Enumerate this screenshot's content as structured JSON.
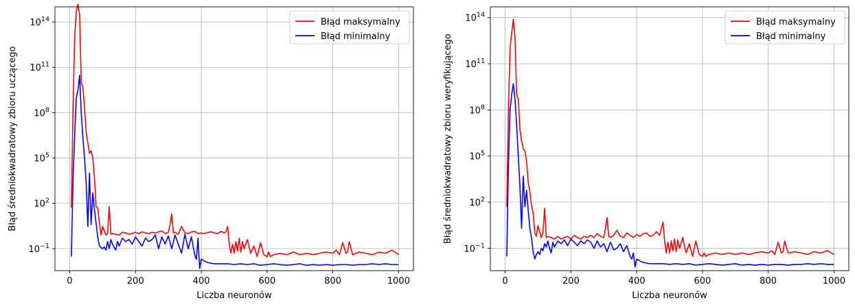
{
  "chart_data": [
    {
      "type": "line",
      "title": "",
      "xlabel": "Liczba neuronów",
      "ylabel": "Błąd średniokwadratowy zbioru uczącego",
      "yscale": "log",
      "xlim": [
        -45,
        1045
      ],
      "ylim": [
        0.0035,
        1000000000000000.0
      ],
      "xticks": [
        0,
        200,
        400,
        600,
        800,
        1000
      ],
      "yticks": [
        {
          "value": 0.1,
          "base": "10",
          "exp": "−1"
        },
        {
          "value": 100,
          "base": "10",
          "exp": "2"
        },
        {
          "value": 100000,
          "base": "10",
          "exp": "5"
        },
        {
          "value": 100000000,
          "base": "10",
          "exp": "8"
        },
        {
          "value": 100000000000,
          "base": "10",
          "exp": "11"
        },
        {
          "value": 100000000000000,
          "base": "10",
          "exp": "14"
        }
      ],
      "grid": true,
      "legend_position": "top-right",
      "series": [
        {
          "name": "Błąd maksymalny",
          "color": "#ff0000",
          "x": [
            5,
            10,
            15,
            20,
            25,
            30,
            35,
            40,
            45,
            50,
            55,
            60,
            65,
            70,
            75,
            80,
            85,
            90,
            95,
            100,
            110,
            115,
            120,
            125,
            130,
            140,
            150,
            160,
            170,
            180,
            190,
            200,
            210,
            220,
            230,
            240,
            250,
            260,
            270,
            280,
            290,
            300,
            305,
            310,
            315,
            320,
            330,
            340,
            350,
            360,
            370,
            380,
            390,
            400,
            410,
            420,
            430,
            440,
            450,
            460,
            470,
            475,
            480,
            485,
            490,
            495,
            500,
            505,
            510,
            515,
            520,
            525,
            530,
            540,
            550,
            560,
            570,
            580,
            590,
            600,
            605,
            610,
            620,
            640,
            660,
            680,
            700,
            720,
            740,
            760,
            780,
            800,
            810,
            820,
            830,
            840,
            845,
            850,
            860,
            880,
            900,
            920,
            940,
            960,
            980,
            1000
          ],
          "y": [
            50,
            200000000.0,
            10000000000000.0,
            500000000000000.0,
            1500000000000000.0,
            300000000000000.0,
            10000000000.0,
            5000000000.0,
            200000000.0,
            5000000.0,
            1000000.0,
            200000.0,
            300000.0,
            100000.0,
            5000.0,
            60,
            50,
            5,
            0.8,
            3,
            0.8,
            1,
            60,
            0.9,
            1,
            0.9,
            0.8,
            1.2,
            1.1,
            0.9,
            1,
            1.2,
            1,
            1.3,
            1.1,
            1,
            1.2,
            1.1,
            1.3,
            1.5,
            1,
            1.2,
            4,
            20,
            1.1,
            1.2,
            0.9,
            3,
            1.1,
            1,
            1.3,
            1.4,
            1,
            1.1,
            1,
            1.2,
            1.3,
            1.1,
            1,
            1.4,
            1.1,
            1.3,
            3,
            0.2,
            0.05,
            0.2,
            0.05,
            0.3,
            0.07,
            0.5,
            0.06,
            0.3,
            0.1,
            0.4,
            0.05,
            0.15,
            0.03,
            0.25,
            0.04,
            0.03,
            0.06,
            0.03,
            0.04,
            0.05,
            0.04,
            0.06,
            0.04,
            0.05,
            0.04,
            0.05,
            0.06,
            0.05,
            0.08,
            0.04,
            0.25,
            0.05,
            0.06,
            0.3,
            0.04,
            0.06,
            0.05,
            0.04,
            0.06,
            0.05,
            0.08,
            0.04
          ]
        },
        {
          "name": "Błąd minimalny",
          "color": "#0000ff",
          "x": [
            5,
            10,
            15,
            20,
            25,
            30,
            35,
            40,
            45,
            50,
            55,
            60,
            65,
            70,
            75,
            80,
            85,
            90,
            95,
            100,
            105,
            110,
            115,
            120,
            125,
            130,
            135,
            140,
            145,
            150,
            160,
            170,
            180,
            190,
            200,
            210,
            220,
            230,
            240,
            250,
            260,
            270,
            280,
            290,
            300,
            310,
            320,
            330,
            340,
            350,
            360,
            370,
            380,
            385,
            390,
            395,
            400,
            410,
            420,
            440,
            460,
            480,
            500,
            520,
            540,
            560,
            580,
            600,
            620,
            640,
            660,
            680,
            700,
            720,
            740,
            760,
            780,
            800,
            820,
            840,
            860,
            880,
            900,
            920,
            940,
            960,
            980,
            1000
          ],
          "y": [
            0.03,
            3000.0,
            3000000.0,
            1000000000.0,
            3000000000.0,
            30000000000.0,
            100000000.0,
            2000000.0,
            100000.0,
            2000.0,
            3,
            10000.0,
            4,
            500,
            40,
            5,
            0.6,
            0.15,
            0.12,
            0.1,
            0.13,
            0.08,
            0.3,
            0.1,
            0.4,
            0.2,
            0.12,
            0.08,
            0.3,
            0.15,
            0.5,
            0.3,
            0.4,
            0.2,
            0.6,
            0.3,
            0.15,
            0.5,
            0.3,
            0.4,
            0.8,
            0.1,
            0.6,
            0.2,
            0.7,
            0.1,
            0.8,
            0.2,
            0.05,
            0.9,
            0.1,
            0.6,
            0.04,
            0.02,
            0.5,
            0.005,
            0.02,
            0.015,
            0.012,
            0.01,
            0.01,
            0.01,
            0.009,
            0.01,
            0.009,
            0.01,
            0.008,
            0.009,
            0.01,
            0.009,
            0.008,
            0.009,
            0.01,
            0.008,
            0.009,
            0.008,
            0.009,
            0.008,
            0.009,
            0.009,
            0.008,
            0.009,
            0.009,
            0.01,
            0.009,
            0.01,
            0.009,
            0.009
          ]
        }
      ]
    },
    {
      "type": "line",
      "title": "",
      "xlabel": "Liczba neuronów",
      "ylabel": "Błąd średniokwadratowy zbioru weryfikującego",
      "yscale": "log",
      "xlim": [
        -45,
        1045
      ],
      "ylim": [
        0.0035,
        500000000000000.0
      ],
      "xticks": [
        0,
        200,
        400,
        600,
        800,
        1000
      ],
      "yticks": [
        {
          "value": 0.1,
          "base": "10",
          "exp": "−1"
        },
        {
          "value": 100,
          "base": "10",
          "exp": "2"
        },
        {
          "value": 100000,
          "base": "10",
          "exp": "5"
        },
        {
          "value": 100000000,
          "base": "10",
          "exp": "8"
        },
        {
          "value": 100000000000,
          "base": "10",
          "exp": "11"
        },
        {
          "value": 100000000000000,
          "base": "10",
          "exp": "14"
        }
      ],
      "grid": true,
      "legend_position": "top-right",
      "series": [
        {
          "name": "Błąd maksymalny",
          "color": "#ff0000",
          "x": [
            5,
            10,
            15,
            20,
            25,
            30,
            35,
            40,
            45,
            50,
            55,
            60,
            65,
            70,
            75,
            80,
            85,
            90,
            95,
            100,
            110,
            115,
            120,
            125,
            130,
            140,
            150,
            160,
            170,
            180,
            190,
            200,
            210,
            220,
            230,
            240,
            250,
            260,
            270,
            280,
            290,
            300,
            305,
            310,
            315,
            320,
            330,
            340,
            350,
            360,
            370,
            380,
            390,
            400,
            410,
            420,
            430,
            440,
            450,
            460,
            470,
            475,
            480,
            485,
            490,
            495,
            500,
            505,
            510,
            515,
            520,
            525,
            530,
            540,
            550,
            560,
            570,
            580,
            590,
            600,
            605,
            610,
            620,
            640,
            660,
            680,
            700,
            720,
            740,
            760,
            780,
            800,
            810,
            820,
            830,
            840,
            845,
            850,
            860,
            880,
            900,
            920,
            940,
            960,
            980,
            1000
          ],
          "y": [
            50,
            100000000.0,
            1000000000000.0,
            10000000000000.0,
            80000000000000.0,
            5000000000000.0,
            1000000000.0,
            500000000.0,
            5000000.0,
            1000000.0,
            300000.0,
            200000.0,
            50000.0,
            2000.0,
            500,
            60,
            20,
            1,
            0.6,
            3,
            0.5,
            1,
            40,
            0.5,
            0.6,
            0.5,
            0.4,
            0.6,
            0.4,
            0.5,
            0.6,
            0.4,
            0.7,
            0.5,
            0.4,
            0.6,
            0.5,
            0.7,
            0.5,
            0.9,
            0.6,
            0.5,
            2,
            10,
            0.6,
            0.5,
            0.7,
            1.5,
            0.6,
            0.5,
            1,
            0.7,
            0.5,
            0.8,
            0.6,
            0.9,
            1,
            0.6,
            0.7,
            1.2,
            0.7,
            2,
            5,
            0.3,
            0.05,
            0.25,
            0.05,
            0.3,
            0.07,
            0.4,
            0.06,
            0.35,
            0.1,
            0.5,
            0.05,
            0.2,
            0.03,
            0.3,
            0.04,
            0.03,
            0.05,
            0.03,
            0.04,
            0.05,
            0.04,
            0.05,
            0.04,
            0.05,
            0.04,
            0.05,
            0.06,
            0.05,
            0.07,
            0.04,
            0.25,
            0.05,
            0.06,
            0.3,
            0.05,
            0.06,
            0.05,
            0.04,
            0.06,
            0.05,
            0.07,
            0.04
          ]
        },
        {
          "name": "Błąd minimalny",
          "color": "#0000ff",
          "x": [
            5,
            10,
            15,
            20,
            25,
            30,
            35,
            40,
            45,
            50,
            55,
            60,
            65,
            70,
            75,
            80,
            85,
            90,
            95,
            100,
            105,
            110,
            115,
            120,
            125,
            130,
            135,
            140,
            145,
            150,
            160,
            170,
            180,
            190,
            200,
            210,
            220,
            230,
            240,
            250,
            260,
            270,
            280,
            290,
            300,
            310,
            320,
            330,
            340,
            350,
            360,
            370,
            380,
            385,
            390,
            395,
            400,
            410,
            420,
            440,
            460,
            480,
            500,
            520,
            540,
            560,
            580,
            600,
            620,
            640,
            660,
            680,
            700,
            720,
            740,
            760,
            780,
            800,
            820,
            840,
            860,
            880,
            900,
            920,
            940,
            960,
            980,
            1000
          ],
          "y": [
            0.03,
            20000.0,
            100000000.0,
            1000000000.0,
            5000000000.0,
            500000000.0,
            10000000.0,
            100000.0,
            1000.0,
            2,
            5000.0,
            50,
            600,
            30,
            2,
            0.5,
            0.06,
            0.02,
            0.04,
            0.06,
            0.04,
            0.1,
            0.07,
            0.2,
            0.12,
            0.3,
            0.1,
            0.05,
            0.25,
            0.12,
            0.3,
            0.2,
            0.35,
            0.15,
            0.4,
            0.25,
            0.15,
            0.3,
            0.2,
            0.35,
            0.25,
            0.1,
            0.3,
            0.12,
            0.2,
            0.06,
            0.25,
            0.08,
            0.1,
            0.2,
            0.06,
            0.15,
            0.03,
            0.02,
            0.05,
            0.006,
            0.02,
            0.015,
            0.012,
            0.01,
            0.01,
            0.01,
            0.009,
            0.01,
            0.009,
            0.01,
            0.008,
            0.009,
            0.01,
            0.009,
            0.008,
            0.009,
            0.01,
            0.008,
            0.009,
            0.008,
            0.009,
            0.008,
            0.009,
            0.009,
            0.008,
            0.009,
            0.009,
            0.01,
            0.009,
            0.01,
            0.009,
            0.009
          ]
        }
      ]
    }
  ]
}
